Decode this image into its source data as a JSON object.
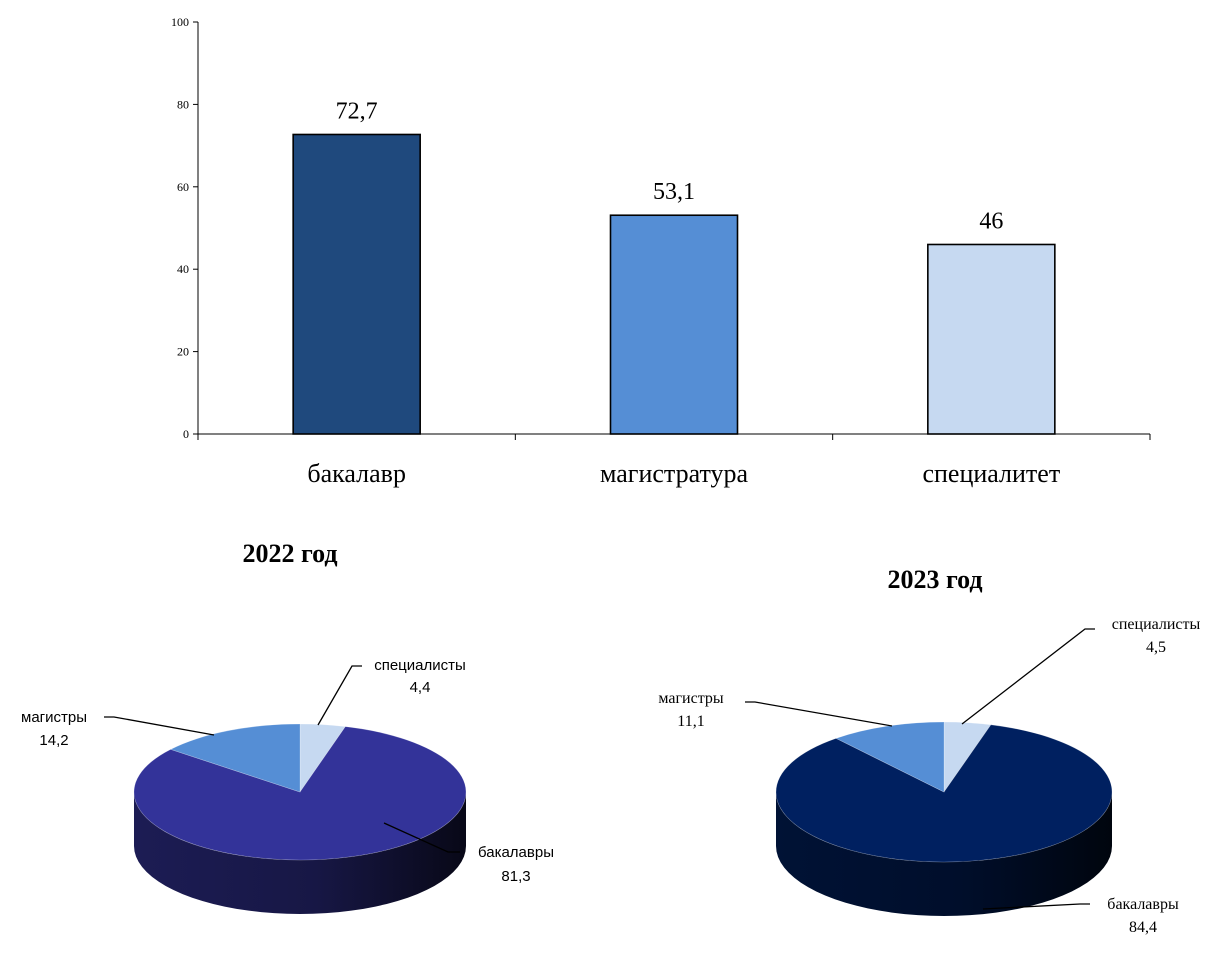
{
  "chart_data": [
    {
      "type": "bar",
      "categories": [
        "бакалавр",
        "магистратура",
        "специалитет"
      ],
      "values": [
        72.7,
        53.1,
        46
      ],
      "value_labels": [
        "72,7",
        "53,1",
        "46"
      ],
      "colors": [
        "#1f497d",
        "#558ed5",
        "#c6d9f1"
      ],
      "ylim": [
        0,
        100
      ],
      "yticks": [
        "0",
        "20",
        "40",
        "60",
        "80",
        "100"
      ],
      "title": "",
      "xlabel": "",
      "ylabel": ""
    },
    {
      "type": "pie",
      "title": "2022 год",
      "slices": [
        {
          "label": "специалисты",
          "value": 4.4,
          "value_label": "4,4",
          "color": "#c6d9f1"
        },
        {
          "label": "бакалавры",
          "value": 81.3,
          "value_label": "81,3",
          "color": "#333399"
        },
        {
          "label": "магистры",
          "value": 14.2,
          "value_label": "14,2",
          "color": "#558ed5"
        }
      ]
    },
    {
      "type": "pie",
      "title": "2023 год",
      "slices": [
        {
          "label": "специалисты",
          "value": 4.5,
          "value_label": "4,5",
          "color": "#c6d9f1"
        },
        {
          "label": "бакалавры",
          "value": 84.4,
          "value_label": "84,4",
          "color": "#002060"
        },
        {
          "label": "магистры",
          "value": 11.1,
          "value_label": "11,1",
          "color": "#558ed5"
        }
      ]
    }
  ]
}
